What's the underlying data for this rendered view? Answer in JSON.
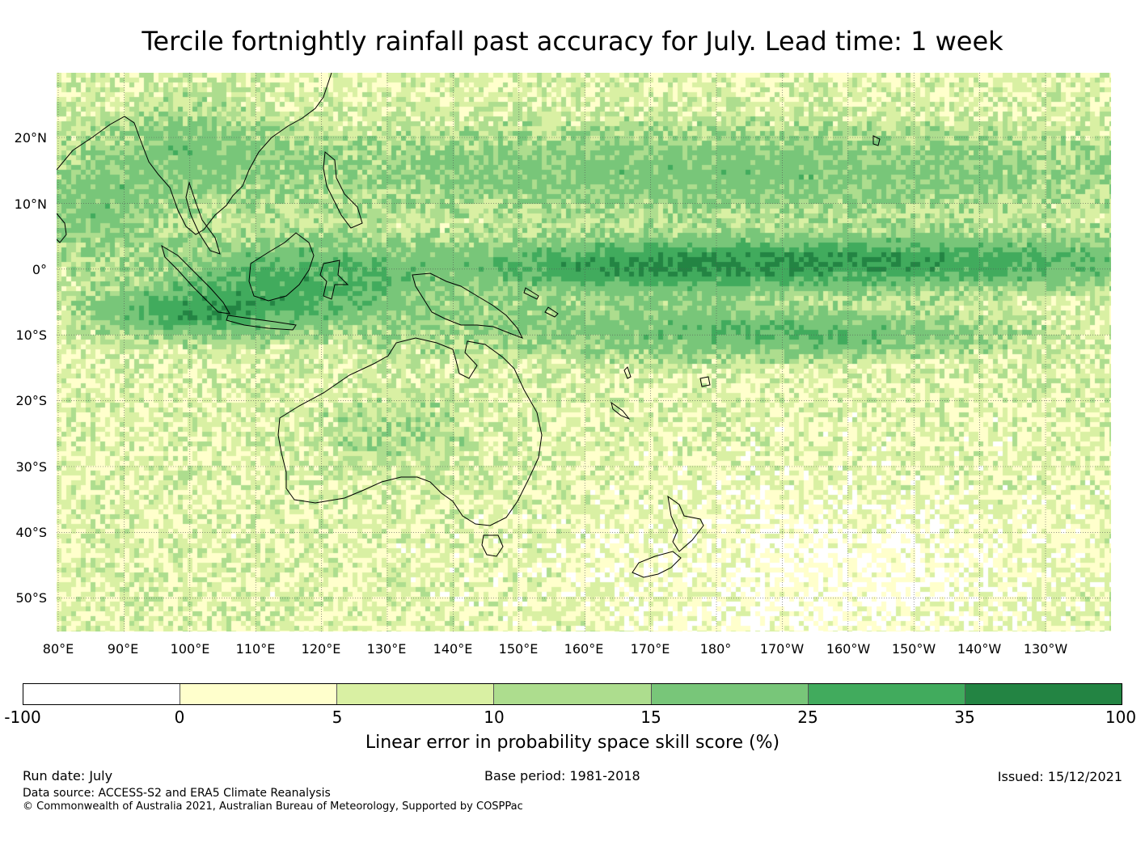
{
  "title": "Tercile fortnightly rainfall past accuracy for July. Lead time: 1 week",
  "map": {
    "lat_labels": [
      "20°N",
      "10°N",
      "0°",
      "10°S",
      "20°S",
      "30°S",
      "40°S",
      "50°S"
    ],
    "lon_labels": [
      "80°E",
      "90°E",
      "100°E",
      "110°E",
      "120°E",
      "130°E",
      "140°E",
      "150°E",
      "160°E",
      "170°E",
      "180°",
      "170°W",
      "160°W",
      "150°W",
      "140°W",
      "130°W"
    ]
  },
  "colorbar": {
    "ticks": [
      "-100",
      "0",
      "5",
      "10",
      "15",
      "25",
      "35",
      "100"
    ],
    "colors": [
      "#ffffff",
      "#ffffcc",
      "#d9f0a3",
      "#addd8e",
      "#78c679",
      "#41ab5d",
      "#238443"
    ],
    "label": "Linear error in probability space skill score (%)"
  },
  "footer": {
    "run_date": "Run date: July",
    "base_period": "Base period: 1981-2018",
    "issued": "Issued: 15/12/2021",
    "data_source": "Data source: ACCESS-S2 and ERA5 Climate Reanalysis",
    "copyright": "© Commonwealth of Australia 2021, Australian Bureau of Meteorology, Supported by COSPPac"
  }
}
